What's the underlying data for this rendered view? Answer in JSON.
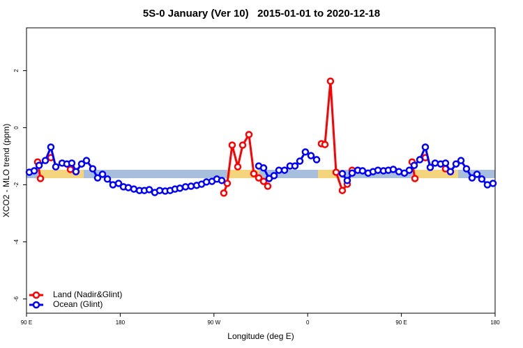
{
  "chart_data": {
    "type": "line",
    "title": "5S-0 January (Ver 10)   2015-01-01 to 2020-12-18",
    "x_label": "Longitude (deg E)",
    "y_label": "XCO2 - MLO trend (ppm)",
    "xlim": [
      90,
      540
    ],
    "ylim": [
      -6.5,
      3.5
    ],
    "xticks": [
      {
        "value": 90,
        "label": "90 E"
      },
      180,
      {
        "value": 270,
        "label": "90 W"
      },
      {
        "value": 360,
        "label": "0"
      },
      {
        "value": 450,
        "label": "90 E"
      },
      {
        "value": 540,
        "label": "180"
      }
    ],
    "yticks": [
      2,
      0,
      -2,
      -4,
      -6
    ],
    "legend": "bottom-left",
    "series": [
      {
        "name": "Land (Nadir&Glint)",
        "color": "#ff0000",
        "x": [
          100.7,
          103.4,
          null,
          113.4,
          null,
          132.2,
          137.5,
          null,
          279.5,
          282.8,
          287.5,
          292.9,
          297.6,
          303.6,
          308.3,
          313.0,
          317.7,
          321.7,
          null,
          373.2,
          376.6,
          381.9,
          387.3,
          393.3,
          398.0,
          402.7,
          null,
          460.3,
          463.0,
          null,
          473.0,
          null,
          492.4,
          497.1
        ],
        "values": [
          -1.2,
          -1.78,
          null,
          -1.05,
          null,
          -1.46,
          -1.54,
          null,
          -2.29,
          -1.95,
          -0.61,
          -1.37,
          -0.61,
          -0.24,
          -1.61,
          -1.76,
          -1.88,
          -2.05,
          null,
          -0.56,
          -0.59,
          1.63,
          -1.56,
          -2.2,
          -1.98,
          -1.49,
          null,
          -1.2,
          -1.78,
          null,
          -1.05,
          null,
          -1.44,
          -1.54
        ]
      },
      {
        "name": "Ocean (Glint)",
        "color": "#0000ff",
        "x": [
          92.7,
          97.4,
          102.1,
          108.1,
          113.4,
          118.1,
          124.2,
          128.8,
          133.5,
          137.5,
          142.9,
          147.6,
          153.6,
          158.3,
          163.0,
          167.7,
          173.0,
          178.4,
          183.1,
          187.8,
          193.1,
          198.5,
          203.2,
          207.9,
          213.2,
          217.9,
          223.2,
          227.9,
          232.6,
          237.3,
          242.7,
          248.0,
          253.4,
          258.1,
          262.8,
          268.1,
          272.8,
          277.5,
          null,
          313.0,
          317.7,
          323.0,
          327.7,
          332.4,
          337.8,
          343.1,
          347.8,
          352.5,
          357.8,
          363.2,
          368.6,
          null,
          393.3,
          398.0,
          402.7,
          408.1,
          412.7,
          418.1,
          422.8,
          427.5,
          432.8,
          437.5,
          442.2,
          447.6,
          452.9,
          457.6,
          462.3,
          467.7,
          473.0,
          477.7,
          482.4,
          487.7,
          492.4,
          497.1,
          502.5,
          507.2,
          512.5,
          517.9,
          522.6,
          527.2,
          532.6,
          538.0
        ],
        "values": [
          -1.56,
          -1.51,
          -1.32,
          -1.15,
          -0.68,
          -1.37,
          -1.24,
          -1.27,
          -1.24,
          -1.54,
          -1.27,
          -1.15,
          -1.44,
          -1.76,
          -1.63,
          -1.8,
          -2.0,
          -1.95,
          -2.07,
          -2.1,
          -2.15,
          -2.2,
          -2.2,
          -2.17,
          -2.27,
          -2.2,
          -2.22,
          -2.2,
          -2.15,
          -2.12,
          -2.07,
          -2.05,
          -2.02,
          -1.98,
          -1.9,
          -1.88,
          -1.8,
          -1.85,
          null,
          -1.34,
          -1.41,
          -1.78,
          -1.68,
          -1.49,
          -1.49,
          -1.34,
          -1.34,
          -1.17,
          -0.85,
          -0.98,
          -1.12,
          null,
          -1.61,
          -1.85,
          -1.59,
          -1.49,
          -1.51,
          -1.59,
          -1.54,
          -1.49,
          -1.51,
          -1.49,
          -1.46,
          -1.54,
          -1.59,
          -1.49,
          -1.32,
          -1.12,
          -0.68,
          -1.39,
          -1.24,
          -1.27,
          -1.24,
          -1.54,
          -1.27,
          -1.15,
          -1.44,
          -1.76,
          -1.63,
          -1.8,
          -2.0,
          -1.95
        ]
      }
    ]
  }
}
